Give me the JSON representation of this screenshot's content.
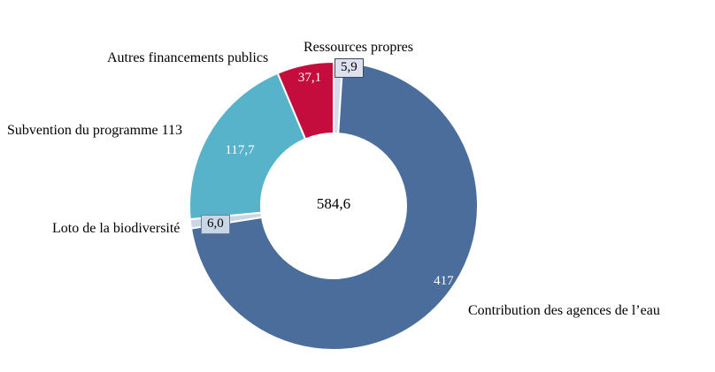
{
  "chart_data": {
    "type": "pie",
    "subtype": "donut",
    "title": "",
    "center_total_display": "584,6",
    "center_total_value": 584.6,
    "legend_position": "none",
    "labels_outside": true,
    "colors": {
      "main_blue": "#4a6d9b",
      "teal": "#56b3c9",
      "crimson": "#c40d3c",
      "pale_lavender": "#d6dbec",
      "pale_bluegray": "#c9d6e6",
      "separator": "#ffffff"
    },
    "segments": [
      {
        "label": "Ressources propres",
        "value": 5.9,
        "display": "5,9",
        "color": "#d6dbec"
      },
      {
        "label": "Contribution des agences de l’eau",
        "value": 417.9,
        "display": "417,9",
        "color": "#4a6d9b"
      },
      {
        "label": "Loto de la biodiversité",
        "value": 6.0,
        "display": "6,0",
        "color": "#c9d6e6"
      },
      {
        "label": "Subvention du programme 113",
        "value": 117.7,
        "display": "117,7",
        "color": "#56b3c9"
      },
      {
        "label": "Autres financements publics",
        "value": 37.1,
        "display": "37,1",
        "color": "#c40d3c"
      }
    ],
    "geometry_note": "clockwise from 12 o'clock in listed order"
  }
}
